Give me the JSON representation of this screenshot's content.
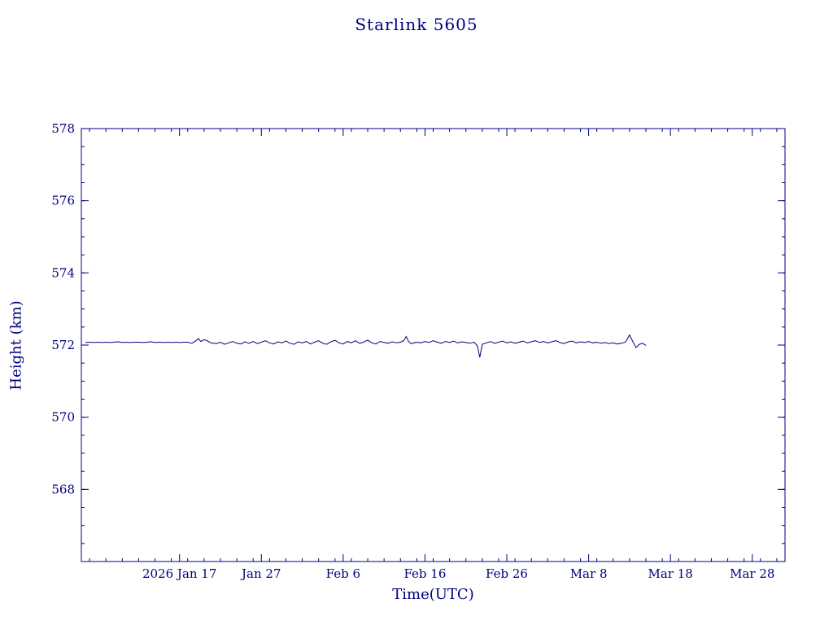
{
  "colors": {
    "accent": "#000080",
    "background": "#ffffff"
  },
  "chart_data": {
    "type": "line",
    "title": "Starlink 5605",
    "xlabel": "Time(UTC)",
    "ylabel": "Height (km)",
    "xlim": [
      5,
      91
    ],
    "ylim": [
      566,
      578
    ],
    "x_unit": "day of year 2026",
    "grid": false,
    "legend": "none",
    "x_ticks": [
      {
        "value": 17,
        "label": "2026 Jan 17"
      },
      {
        "value": 27,
        "label": "Jan 27"
      },
      {
        "value": 37,
        "label": "Feb 6"
      },
      {
        "value": 47,
        "label": "Feb 16"
      },
      {
        "value": 57,
        "label": "Feb 26"
      },
      {
        "value": 67,
        "label": "Mar 8"
      },
      {
        "value": 77,
        "label": "Mar 18"
      },
      {
        "value": 87,
        "label": "Mar 28"
      }
    ],
    "x_minor_step": 2,
    "y_ticks": [
      568,
      570,
      572,
      574,
      576,
      578
    ],
    "y_minor_step": 0.5,
    "series": [
      {
        "name": "height",
        "color": "#000080",
        "points": [
          [
            5.5,
            572.07
          ],
          [
            6,
            572.08
          ],
          [
            6.5,
            572.07
          ],
          [
            7,
            572.08
          ],
          [
            7.5,
            572.07
          ],
          [
            8,
            572.08
          ],
          [
            8.5,
            572.07
          ],
          [
            9,
            572.08
          ],
          [
            9.5,
            572.09
          ],
          [
            10,
            572.07
          ],
          [
            10.5,
            572.08
          ],
          [
            11,
            572.07
          ],
          [
            11.5,
            572.08
          ],
          [
            12,
            572.08
          ],
          [
            12.5,
            572.07
          ],
          [
            13,
            572.08
          ],
          [
            13.5,
            572.09
          ],
          [
            14,
            572.07
          ],
          [
            14.5,
            572.08
          ],
          [
            15,
            572.07
          ],
          [
            15.5,
            572.08
          ],
          [
            16,
            572.07
          ],
          [
            16.5,
            572.08
          ],
          [
            17,
            572.07
          ],
          [
            17.5,
            572.08
          ],
          [
            18,
            572.08
          ],
          [
            18.5,
            572.05
          ],
          [
            19,
            572.12
          ],
          [
            19.3,
            572.18
          ],
          [
            19.6,
            572.1
          ],
          [
            20,
            572.15
          ],
          [
            20.4,
            572.12
          ],
          [
            20.8,
            572.06
          ],
          [
            21.5,
            572.04
          ],
          [
            22,
            572.08
          ],
          [
            22.5,
            572.02
          ],
          [
            23,
            572.06
          ],
          [
            23.5,
            572.1
          ],
          [
            24,
            572.05
          ],
          [
            24.5,
            572.03
          ],
          [
            25,
            572.09
          ],
          [
            25.5,
            572.05
          ],
          [
            26,
            572.1
          ],
          [
            26.5,
            572.04
          ],
          [
            27,
            572.08
          ],
          [
            27.5,
            572.12
          ],
          [
            28,
            572.06
          ],
          [
            28.5,
            572.03
          ],
          [
            29,
            572.09
          ],
          [
            29.5,
            572.06
          ],
          [
            30,
            572.11
          ],
          [
            30.5,
            572.05
          ],
          [
            31,
            572.02
          ],
          [
            31.5,
            572.09
          ],
          [
            32,
            572.06
          ],
          [
            32.5,
            572.1
          ],
          [
            33,
            572.03
          ],
          [
            33.5,
            572.08
          ],
          [
            34,
            572.12
          ],
          [
            34.5,
            572.05
          ],
          [
            35,
            572.02
          ],
          [
            35.5,
            572.09
          ],
          [
            36,
            572.13
          ],
          [
            36.5,
            572.06
          ],
          [
            37,
            572.03
          ],
          [
            37.5,
            572.1
          ],
          [
            38,
            572.06
          ],
          [
            38.5,
            572.12
          ],
          [
            39,
            572.05
          ],
          [
            39.5,
            572.08
          ],
          [
            40,
            572.14
          ],
          [
            40.5,
            572.06
          ],
          [
            41,
            572.03
          ],
          [
            41.5,
            572.1
          ],
          [
            42,
            572.07
          ],
          [
            42.5,
            572.05
          ],
          [
            43,
            572.09
          ],
          [
            43.5,
            572.06
          ],
          [
            44,
            572.08
          ],
          [
            44.4,
            572.12
          ],
          [
            44.7,
            572.24
          ],
          [
            45,
            572.1
          ],
          [
            45.3,
            572.04
          ],
          [
            46,
            572.08
          ],
          [
            46.5,
            572.06
          ],
          [
            47,
            572.1
          ],
          [
            47.5,
            572.07
          ],
          [
            48,
            572.12
          ],
          [
            48.5,
            572.08
          ],
          [
            49,
            572.05
          ],
          [
            49.5,
            572.1
          ],
          [
            50,
            572.07
          ],
          [
            50.5,
            572.11
          ],
          [
            51,
            572.06
          ],
          [
            51.5,
            572.09
          ],
          [
            52,
            572.07
          ],
          [
            52.5,
            572.05
          ],
          [
            53,
            572.08
          ],
          [
            53.4,
            571.98
          ],
          [
            53.7,
            571.66
          ],
          [
            54,
            572.02
          ],
          [
            54.5,
            572.06
          ],
          [
            55,
            572.1
          ],
          [
            55.5,
            572.05
          ],
          [
            56,
            572.08
          ],
          [
            56.5,
            572.11
          ],
          [
            57,
            572.06
          ],
          [
            57.5,
            572.09
          ],
          [
            58,
            572.05
          ],
          [
            58.5,
            572.08
          ],
          [
            59,
            572.11
          ],
          [
            59.5,
            572.06
          ],
          [
            60,
            572.09
          ],
          [
            60.5,
            572.12
          ],
          [
            61,
            572.07
          ],
          [
            61.5,
            572.1
          ],
          [
            62,
            572.06
          ],
          [
            62.5,
            572.09
          ],
          [
            63,
            572.12
          ],
          [
            63.5,
            572.07
          ],
          [
            64,
            572.04
          ],
          [
            64.5,
            572.09
          ],
          [
            65,
            572.11
          ],
          [
            65.5,
            572.06
          ],
          [
            66,
            572.09
          ],
          [
            66.5,
            572.07
          ],
          [
            67,
            572.1
          ],
          [
            67.5,
            572.06
          ],
          [
            68,
            572.08
          ],
          [
            68.5,
            572.05
          ],
          [
            69,
            572.07
          ],
          [
            69.5,
            572.04
          ],
          [
            70,
            572.06
          ],
          [
            70.5,
            572.03
          ],
          [
            71,
            572.05
          ],
          [
            71.5,
            572.08
          ],
          [
            72,
            572.28
          ],
          [
            72.4,
            572.1
          ],
          [
            72.8,
            571.93
          ],
          [
            73.2,
            572.02
          ],
          [
            73.6,
            572.05
          ],
          [
            74,
            571.99
          ]
        ]
      }
    ]
  }
}
